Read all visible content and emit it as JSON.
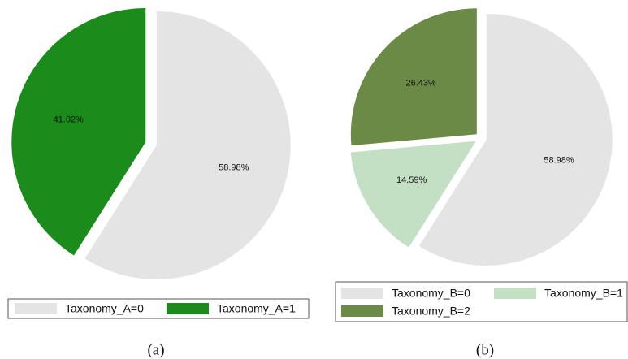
{
  "chart_data": [
    {
      "type": "pie",
      "caption": "(a)",
      "categories": [
        "Taxonomy_A=0",
        "Taxonomy_A=1"
      ],
      "values": [
        58.98,
        41.02
      ],
      "value_labels": [
        "58.98%",
        "41.02%"
      ],
      "colors": [
        "#e4e4e4",
        "#1b8c1b"
      ]
    },
    {
      "type": "pie",
      "caption": "(b)",
      "categories": [
        "Taxonomy_B=0",
        "Taxonomy_B=1",
        "Taxonomy_B=2"
      ],
      "values": [
        58.98,
        14.59,
        26.43
      ],
      "value_labels": [
        "58.98%",
        "14.59%",
        "26.43%"
      ],
      "colors": [
        "#e4e4e4",
        "#c4e0c4",
        "#6b8a45"
      ]
    }
  ]
}
